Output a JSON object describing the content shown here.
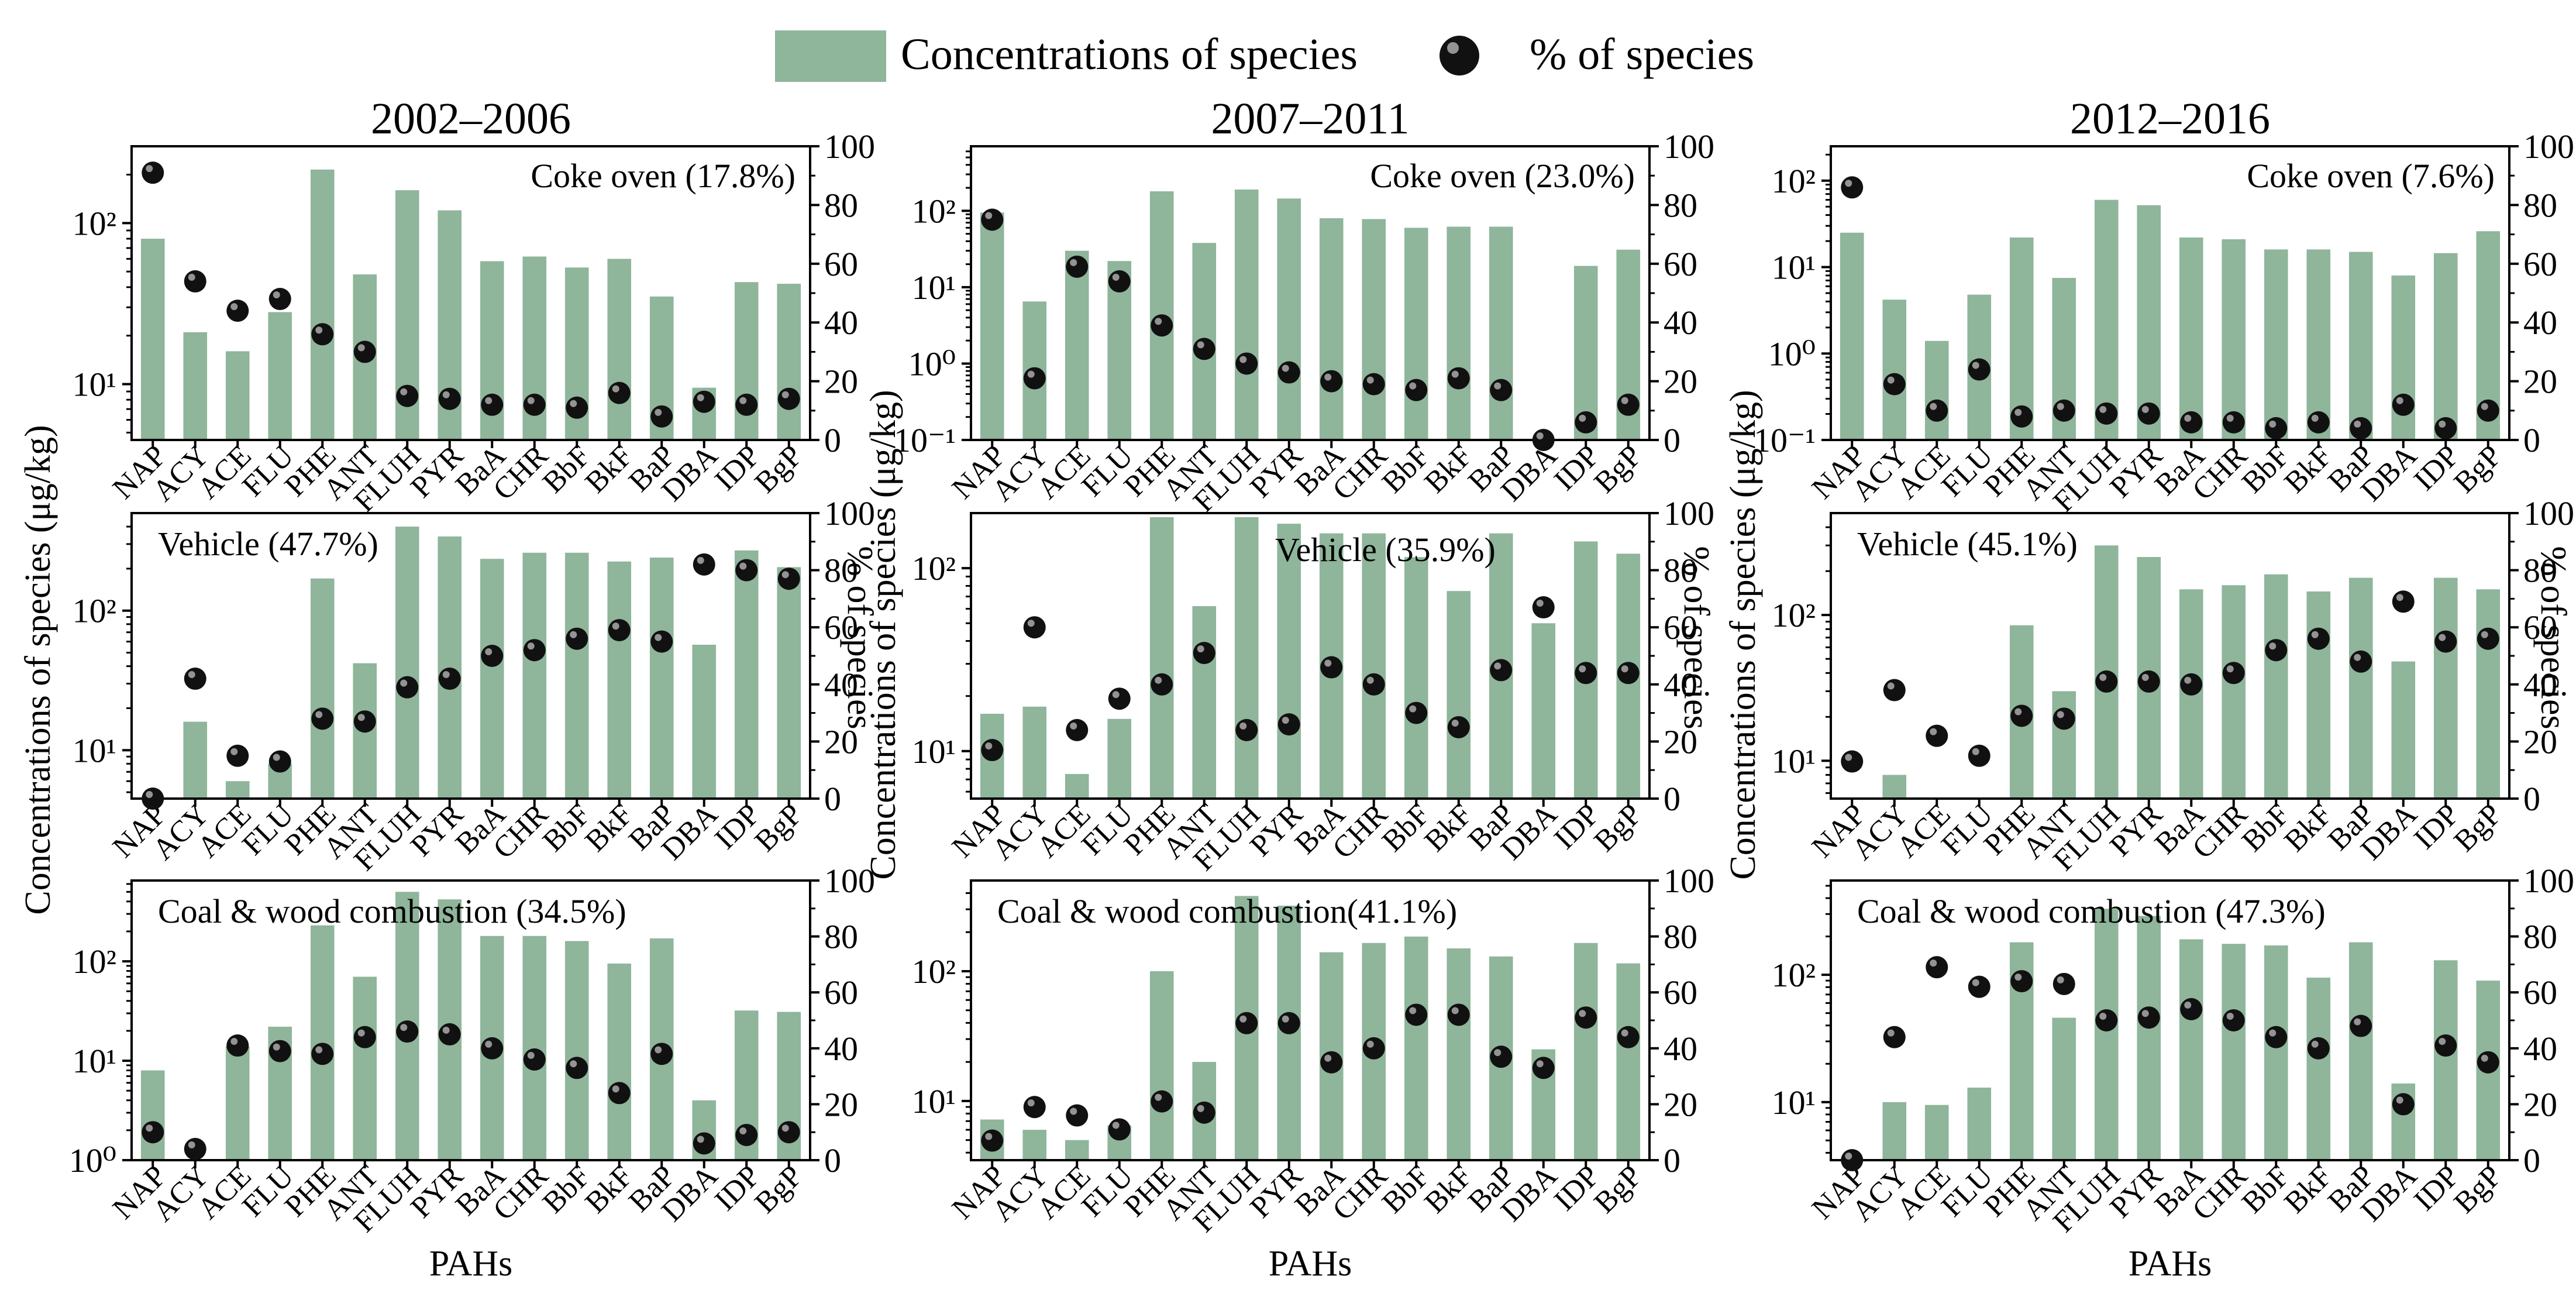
{
  "legend": {
    "bar_label": "Concentrations of species",
    "dot_label": "% of species"
  },
  "colors": {
    "bar": "#8fb59b",
    "dot": "#111111",
    "axis": "#000000"
  },
  "x_axis_label": "PAHs",
  "y_left_label": "Concentrations of species (μg/kg)",
  "y_right_label": "% of  species",
  "chart_data": [
    {
      "type": "bar",
      "period": "2002–2006",
      "row": 0,
      "col": 0,
      "annotation": "Coke oven (17.8%)",
      "categories": [
        "NAP",
        "ACY",
        "ACE",
        "FLU",
        "PHE",
        "ANT",
        "FLUH",
        "PYR",
        "BaA",
        "CHR",
        "BbF",
        "BkF",
        "BaP",
        "DBA",
        "IDP",
        "BgP"
      ],
      "y_left_scale": "log",
      "y_left_ticks": [
        10,
        100
      ],
      "y_left_tick_labels": [
        "10¹",
        "10²"
      ],
      "y_left_range": [
        4.5,
        300
      ],
      "y_right_range": [
        0,
        100
      ],
      "y_right_ticks": [
        0,
        20,
        40,
        60,
        80,
        100
      ],
      "series": [
        {
          "name": "Concentrations of species",
          "kind": "bar",
          "values": [
            80,
            21,
            16,
            28,
            215,
            48,
            160,
            120,
            58,
            62,
            53,
            60,
            35,
            9.5,
            43,
            42
          ]
        },
        {
          "name": "% of species",
          "kind": "dot",
          "values": [
            91,
            54,
            44,
            48,
            36,
            30,
            15,
            14,
            12,
            12,
            11,
            16,
            8,
            13,
            12,
            14
          ]
        }
      ]
    },
    {
      "type": "bar",
      "period": "2007–2011",
      "row": 0,
      "col": 1,
      "annotation": "Coke oven (23.0%)",
      "categories": [
        "NAP",
        "ACY",
        "ACE",
        "FLU",
        "PHE",
        "ANT",
        "FLUH",
        "PYR",
        "BaA",
        "CHR",
        "BbF",
        "BkF",
        "BaP",
        "DBA",
        "IDP",
        "BgP"
      ],
      "y_left_scale": "log",
      "y_left_ticks": [
        0.1,
        1,
        10,
        100
      ],
      "y_left_tick_labels": [
        "10⁻¹",
        "10⁰",
        "10¹",
        "10²"
      ],
      "y_left_range": [
        0.1,
        700
      ],
      "y_right_range": [
        0,
        100
      ],
      "y_right_ticks": [
        0,
        20,
        40,
        60,
        80,
        100
      ],
      "series": [
        {
          "name": "Concentrations of species",
          "kind": "bar",
          "values": [
            95,
            6.5,
            30,
            22,
            180,
            38,
            190,
            145,
            80,
            78,
            60,
            62,
            62,
            0.1,
            19,
            31
          ]
        },
        {
          "name": "% of species",
          "kind": "dot",
          "values": [
            75,
            21,
            59,
            54,
            39,
            31,
            26,
            23,
            20,
            19,
            17,
            21,
            17,
            0,
            6,
            12
          ]
        }
      ]
    },
    {
      "type": "bar",
      "period": "2012–2016",
      "row": 0,
      "col": 2,
      "annotation": "Coke oven (7.6%)",
      "categories": [
        "NAP",
        "ACY",
        "ACE",
        "FLU",
        "PHE",
        "ANT",
        "FLUH",
        "PYR",
        "BaA",
        "CHR",
        "BbF",
        "BkF",
        "BaP",
        "DBA",
        "IDP",
        "BgP"
      ],
      "y_left_scale": "log",
      "y_left_ticks": [
        0.1,
        1,
        10,
        100
      ],
      "y_left_tick_labels": [
        "10⁻¹",
        "10⁰",
        "10¹",
        "10²"
      ],
      "y_left_range": [
        0.1,
        250
      ],
      "y_right_range": [
        0,
        100
      ],
      "y_right_ticks": [
        0,
        20,
        40,
        60,
        80,
        100
      ],
      "series": [
        {
          "name": "Concentrations of species",
          "kind": "bar",
          "values": [
            25,
            4.2,
            1.4,
            4.8,
            22,
            7.5,
            60,
            52,
            22,
            21,
            16,
            16,
            15,
            8,
            14.5,
            26
          ]
        },
        {
          "name": "% of species",
          "kind": "dot",
          "values": [
            86,
            19,
            10,
            24,
            8,
            10,
            9,
            9,
            6,
            6,
            4,
            6,
            4,
            12,
            4,
            10
          ]
        }
      ]
    },
    {
      "type": "bar",
      "period": "2002–2006",
      "row": 1,
      "col": 0,
      "annotation": "Vehicle (47.7%)",
      "categories": [
        "NAP",
        "ACY",
        "ACE",
        "FLU",
        "PHE",
        "ANT",
        "FLUH",
        "PYR",
        "BaA",
        "CHR",
        "BbF",
        "BkF",
        "BaP",
        "DBA",
        "IDP",
        "BgP"
      ],
      "y_left_scale": "log",
      "y_left_ticks": [
        10,
        100
      ],
      "y_left_tick_labels": [
        "10¹",
        "10²"
      ],
      "y_left_range": [
        4.5,
        500
      ],
      "y_right_range": [
        0,
        100
      ],
      "y_right_ticks": [
        0,
        20,
        40,
        60,
        80,
        100
      ],
      "series": [
        {
          "name": "Concentrations of species",
          "kind": "bar",
          "values": [
            2,
            16,
            6,
            8,
            170,
            42,
            400,
            340,
            235,
            260,
            260,
            225,
            240,
            57,
            270,
            205
          ]
        },
        {
          "name": "% of species",
          "kind": "dot",
          "values": [
            0,
            42,
            15,
            13,
            28,
            27,
            39,
            42,
            50,
            52,
            56,
            59,
            55,
            82,
            80,
            77
          ]
        }
      ]
    },
    {
      "type": "bar",
      "period": "2007–2011",
      "row": 1,
      "col": 1,
      "annotation": "Vehicle (35.9%)",
      "categories": [
        "NAP",
        "ACY",
        "ACE",
        "FLU",
        "PHE",
        "ANT",
        "FLUH",
        "PYR",
        "BaA",
        "CHR",
        "BbF",
        "BkF",
        "BaP",
        "DBA",
        "IDP",
        "BgP"
      ],
      "y_left_scale": "log",
      "y_left_ticks": [
        10,
        100
      ],
      "y_left_tick_labels": [
        "10¹",
        "10²"
      ],
      "y_left_range": [
        5.5,
        200
      ],
      "y_right_range": [
        0,
        100
      ],
      "y_right_ticks": [
        0,
        20,
        40,
        60,
        80,
        100
      ],
      "series": [
        {
          "name": "Concentrations of species",
          "kind": "bar",
          "values": [
            16,
            17.5,
            7.5,
            15,
            190,
            62,
            190,
            175,
            155,
            155,
            115,
            75,
            155,
            50,
            140,
            120
          ]
        },
        {
          "name": "% of species",
          "kind": "dot",
          "values": [
            17,
            60,
            24,
            35,
            40,
            51,
            24,
            26,
            46,
            40,
            30,
            25,
            45,
            67,
            44,
            44
          ]
        }
      ]
    },
    {
      "type": "bar",
      "period": "2012–2016",
      "row": 1,
      "col": 2,
      "annotation": "Vehicle (45.1%)",
      "categories": [
        "NAP",
        "ACY",
        "ACE",
        "FLU",
        "PHE",
        "ANT",
        "FLUH",
        "PYR",
        "BaA",
        "CHR",
        "BbF",
        "BkF",
        "BaP",
        "DBA",
        "IDP",
        "BgP"
      ],
      "y_left_scale": "log",
      "y_left_ticks": [
        10,
        100
      ],
      "y_left_tick_labels": [
        "10¹",
        "10²"
      ],
      "y_left_range": [
        5.5,
        500
      ],
      "y_right_range": [
        0,
        100
      ],
      "y_right_ticks": [
        0,
        20,
        40,
        60,
        80,
        100
      ],
      "series": [
        {
          "name": "Concentrations of species",
          "kind": "bar",
          "values": [
            2,
            8,
            3,
            4,
            85,
            30,
            300,
            250,
            150,
            160,
            190,
            145,
            180,
            48,
            180,
            150
          ]
        },
        {
          "name": "% of species",
          "kind": "dot",
          "values": [
            13,
            38,
            22,
            15,
            29,
            28,
            41,
            41,
            40,
            44,
            52,
            56,
            48,
            69,
            55,
            56
          ]
        }
      ]
    },
    {
      "type": "bar",
      "period": "2002–2006",
      "row": 2,
      "col": 0,
      "annotation": "Coal & wood combustion (34.5%)",
      "categories": [
        "NAP",
        "ACY",
        "ACE",
        "FLU",
        "PHE",
        "ANT",
        "FLUH",
        "PYR",
        "BaA",
        "CHR",
        "BbF",
        "BkF",
        "BaP",
        "DBA",
        "IDP",
        "BgP"
      ],
      "y_left_scale": "log",
      "y_left_ticks": [
        1,
        10,
        100
      ],
      "y_left_tick_labels": [
        "10⁰",
        "10¹",
        "10²"
      ],
      "y_left_range": [
        1,
        650
      ],
      "y_right_range": [
        0,
        100
      ],
      "y_right_ticks": [
        0,
        20,
        40,
        60,
        80,
        100
      ],
      "series": [
        {
          "name": "Concentrations of species",
          "kind": "bar",
          "values": [
            8,
            1,
            14,
            22,
            230,
            70,
            500,
            420,
            180,
            180,
            160,
            95,
            170,
            4,
            32,
            31
          ]
        },
        {
          "name": "% of species",
          "kind": "dot",
          "values": [
            10,
            4,
            41,
            39,
            38,
            44,
            46,
            45,
            40,
            36,
            33,
            24,
            38,
            6,
            9,
            10
          ]
        }
      ]
    },
    {
      "type": "bar",
      "period": "2007–2011",
      "row": 2,
      "col": 1,
      "annotation": "Coal & wood combustion(41.1%)",
      "categories": [
        "NAP",
        "ACY",
        "ACE",
        "FLU",
        "PHE",
        "ANT",
        "FLUH",
        "PYR",
        "BaA",
        "CHR",
        "BbF",
        "BkF",
        "BaP",
        "DBA",
        "IDP",
        "BgP"
      ],
      "y_left_scale": "log",
      "y_left_ticks": [
        10,
        100
      ],
      "y_left_tick_labels": [
        "10¹",
        "10²"
      ],
      "y_left_range": [
        3.5,
        500
      ],
      "y_right_range": [
        0,
        100
      ],
      "y_right_ticks": [
        0,
        20,
        40,
        60,
        80,
        100
      ],
      "series": [
        {
          "name": "Concentrations of species",
          "kind": "bar",
          "values": [
            7.2,
            6,
            5,
            6.5,
            100,
            20,
            380,
            320,
            140,
            165,
            185,
            150,
            130,
            25,
            165,
            115
          ]
        },
        {
          "name": "% of species",
          "kind": "dot",
          "values": [
            7,
            19,
            16,
            11,
            21,
            17,
            49,
            49,
            35,
            40,
            52,
            52,
            37,
            33,
            51,
            44
          ]
        }
      ]
    },
    {
      "type": "bar",
      "period": "2012–2016",
      "row": 2,
      "col": 2,
      "annotation": "Coal & wood combustion (47.3%)",
      "categories": [
        "NAP",
        "ACY",
        "ACE",
        "FLU",
        "PHE",
        "ANT",
        "FLUH",
        "PYR",
        "BaA",
        "CHR",
        "BbF",
        "BkF",
        "BaP",
        "DBA",
        "IDP",
        "BgP"
      ],
      "y_left_scale": "log",
      "y_left_ticks": [
        10,
        100
      ],
      "y_left_tick_labels": [
        "10¹",
        "10²"
      ],
      "y_left_range": [
        3.5,
        550
      ],
      "y_right_range": [
        0,
        100
      ],
      "y_right_ticks": [
        0,
        20,
        40,
        60,
        80,
        100
      ],
      "series": [
        {
          "name": "Concentrations of species",
          "kind": "bar",
          "values": [
            2,
            10,
            9.5,
            13,
            180,
            46,
            330,
            290,
            190,
            175,
            170,
            95,
            180,
            14,
            130,
            90
          ]
        },
        {
          "name": "% of species",
          "kind": "dot",
          "values": [
            0,
            44,
            69,
            62,
            64,
            63,
            50,
            51,
            54,
            50,
            44,
            40,
            48,
            20,
            41,
            35
          ]
        }
      ]
    }
  ]
}
